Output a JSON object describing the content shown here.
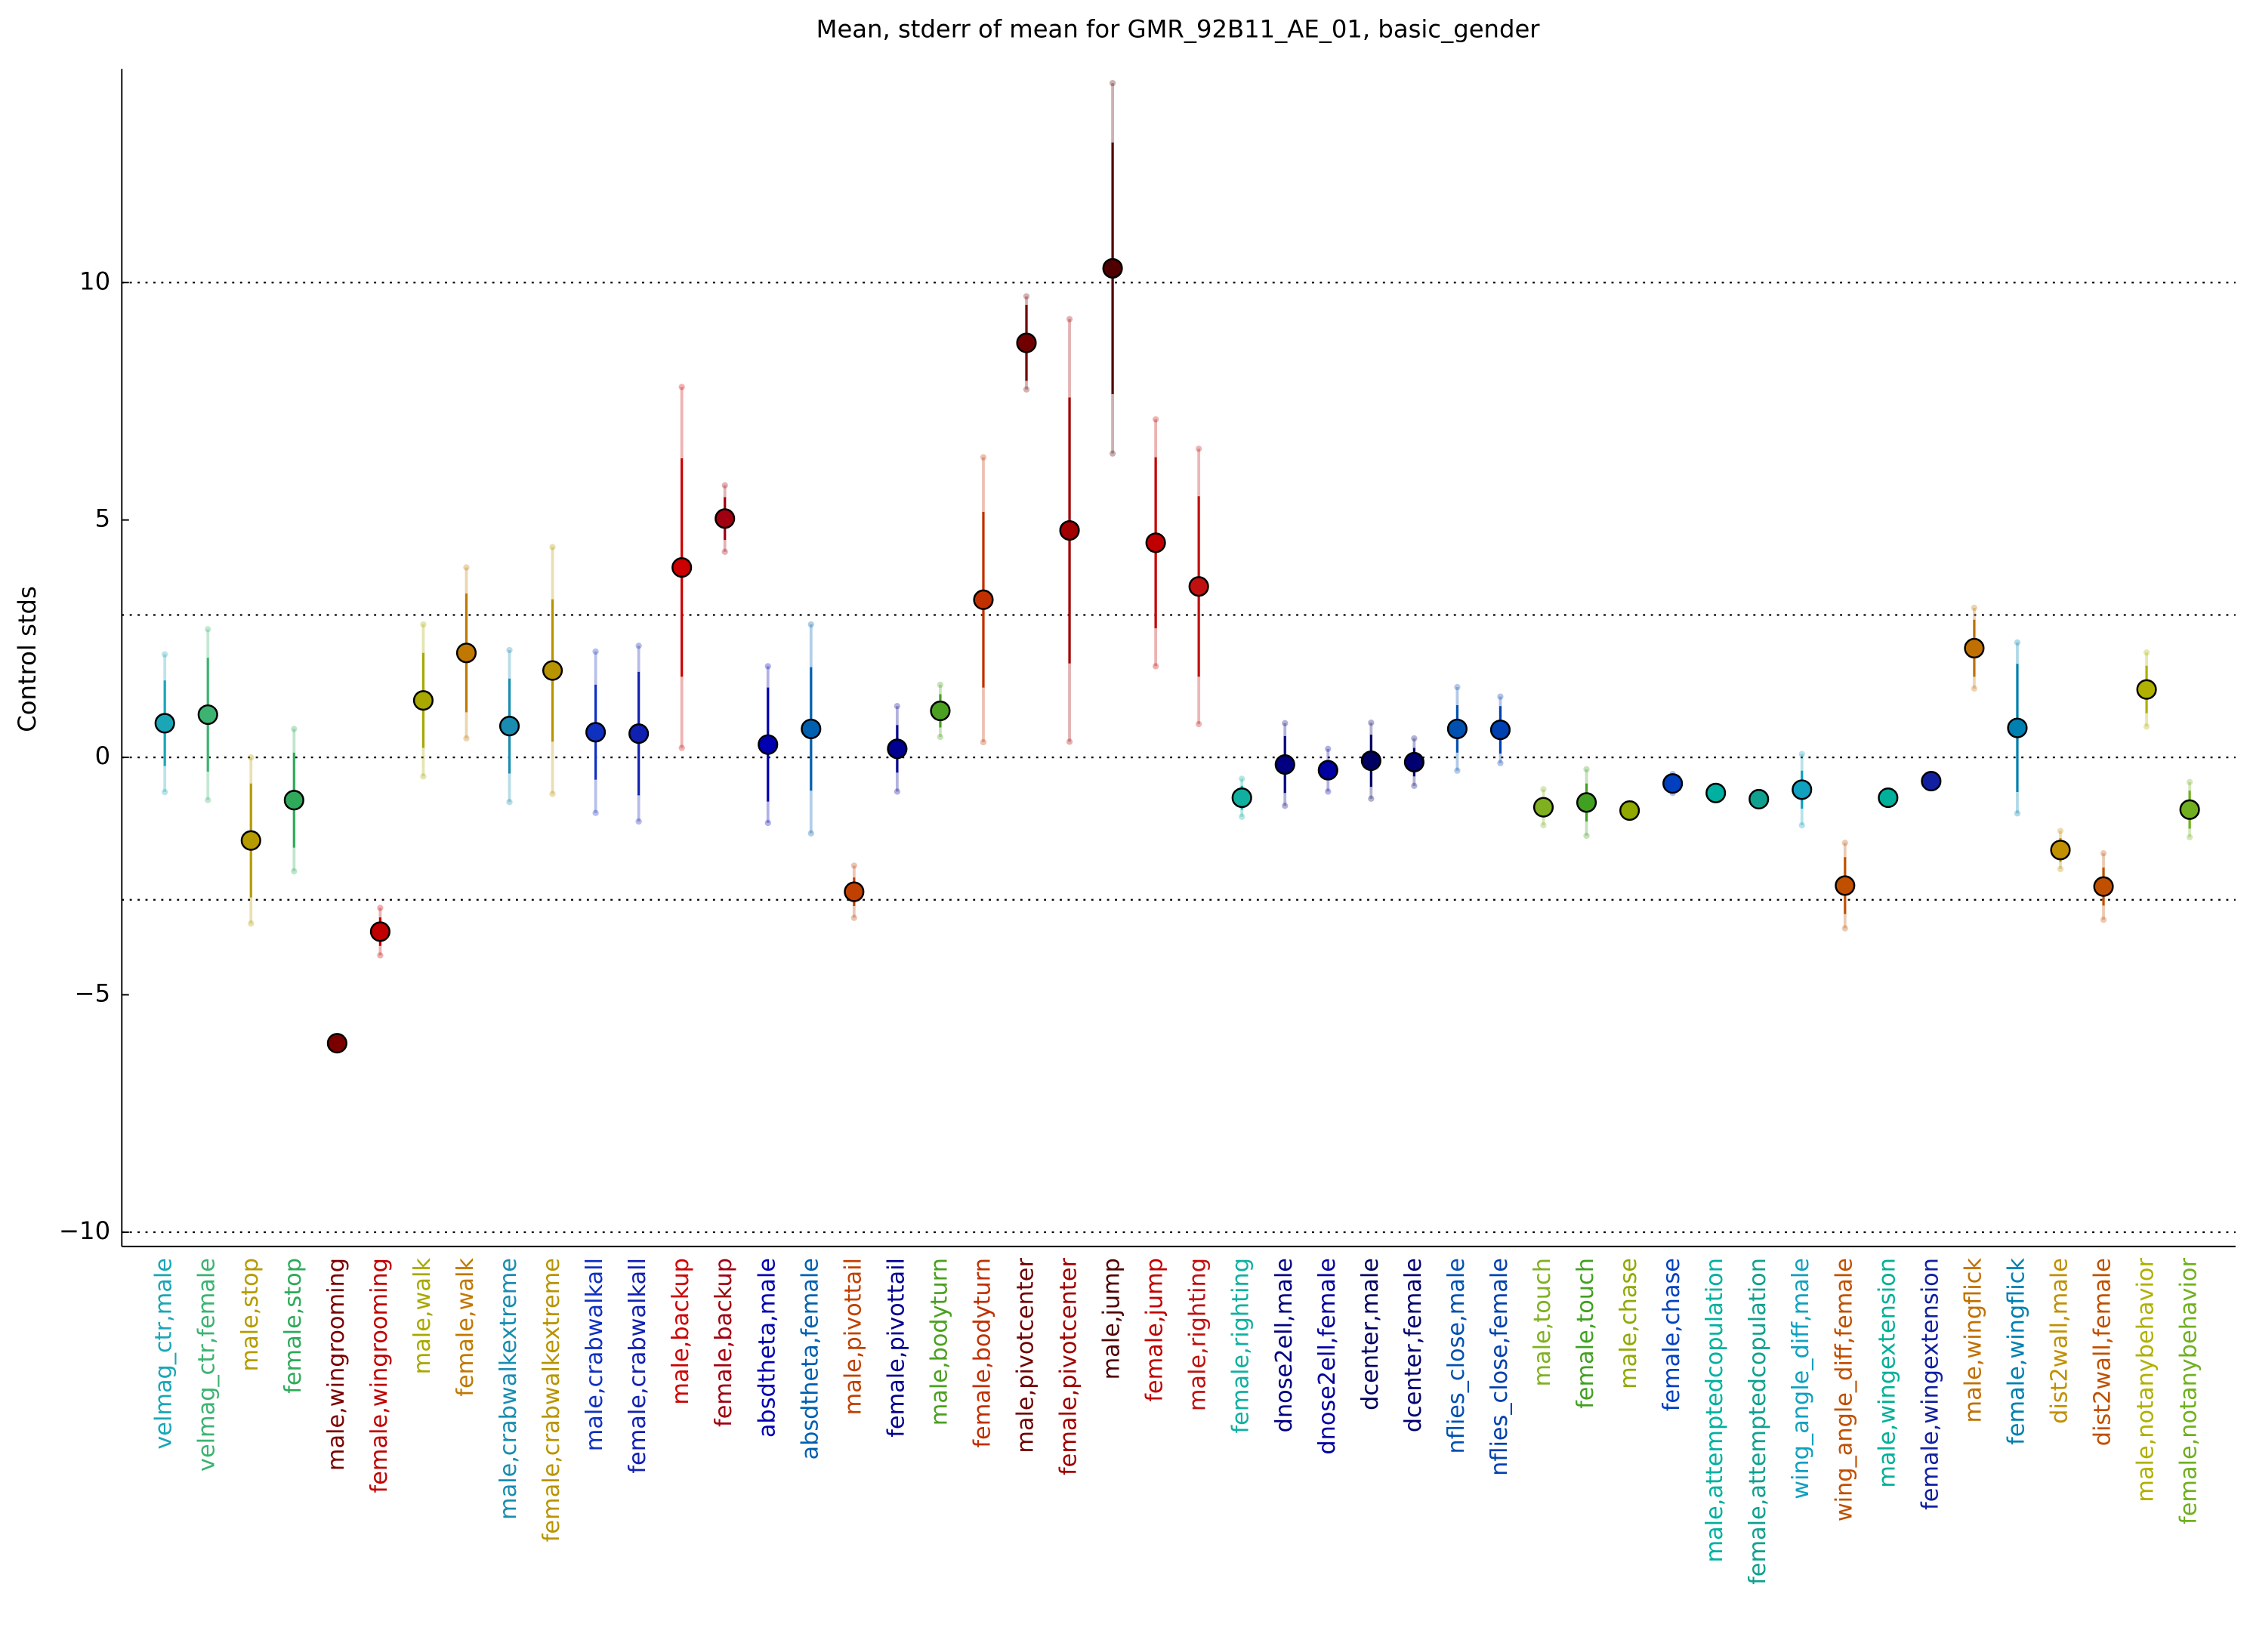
{
  "chart_data": {
    "type": "errorbar",
    "title": "Mean, stderr of mean for GMR_92B11_AE_01, basic_gender",
    "ylabel": "Control stds",
    "ylim": [
      -10.3,
      14.5
    ],
    "yticks": [
      {
        "value": -10,
        "label": "−10"
      },
      {
        "value": -5,
        "label": "−5"
      },
      0,
      5,
      10
    ],
    "hlines": [
      -10,
      -3,
      0,
      3,
      10
    ],
    "categories": [
      "velmag_ctr,male",
      "velmag_ctr,female",
      "male,stop",
      "female,stop",
      "male,wingrooming",
      "female,wingrooming",
      "male,walk",
      "female,walk",
      "male,crabwalkextreme",
      "female,crabwalkextreme",
      "male,crabwalkall",
      "female,crabwalkall",
      "male,backup",
      "female,backup",
      "absdtheta,male",
      "absdtheta,female",
      "male,pivottail",
      "female,pivottail",
      "male,bodyturn",
      "female,bodyturn",
      "male,pivotcenter",
      "female,pivotcenter",
      "male,jump",
      "female,jump",
      "male,righting",
      "female,righting",
      "dnose2ell,male",
      "dnose2ell,female",
      "dcenter,male",
      "dcenter,female",
      "nflies_close,male",
      "nflies_close,female",
      "male,touch",
      "female,touch",
      "male,chase",
      "female,chase",
      "male,attemptedcopulation",
      "female,attemptedcopulation",
      "wing_angle_diff,male",
      "wing_angle_diff,female",
      "male,wingextension",
      "female,wingextension",
      "male,wingflick",
      "female,wingflick",
      "dist2wall,male",
      "dist2wall,female",
      "male,notanybehavior",
      "female,notanybehavior"
    ],
    "values": [
      0.72,
      0.9,
      -1.75,
      -0.9,
      -6.02,
      -3.67,
      1.2,
      2.2,
      0.66,
      1.83,
      0.53,
      0.5,
      4.0,
      5.03,
      0.27,
      0.6,
      -2.83,
      0.18,
      0.98,
      3.32,
      8.73,
      4.78,
      10.3,
      4.52,
      3.6,
      -0.85,
      -0.15,
      -0.27,
      -0.07,
      -0.1,
      0.6,
      0.58,
      -1.05,
      -0.95,
      -1.12,
      -0.55,
      -0.75,
      -0.88,
      -0.68,
      -2.7,
      -0.85,
      -0.5,
      2.3,
      0.62,
      -1.95,
      -2.72,
      1.43,
      -1.1
    ],
    "errors": [
      0.9,
      1.2,
      1.2,
      1.0,
      0.05,
      0.3,
      1.0,
      1.25,
      1.0,
      1.5,
      1.0,
      1.3,
      2.3,
      0.45,
      1.2,
      1.3,
      0.3,
      0.5,
      0.35,
      1.85,
      0.8,
      2.8,
      2.65,
      1.8,
      1.9,
      0.25,
      0.6,
      0.2,
      0.55,
      0.3,
      0.5,
      0.5,
      0.2,
      0.4,
      0.05,
      0.1,
      0.05,
      0.05,
      0.4,
      0.6,
      0.05,
      0.05,
      0.6,
      1.35,
      0.25,
      0.4,
      0.5,
      0.4
    ],
    "spread": [
      1.45,
      1.8,
      1.75,
      1.5,
      0.1,
      0.5,
      1.6,
      1.8,
      1.6,
      2.6,
      1.7,
      1.85,
      3.8,
      0.7,
      1.65,
      2.2,
      0.55,
      0.9,
      0.55,
      3.0,
      0.98,
      4.45,
      3.9,
      2.6,
      2.9,
      0.4,
      0.87,
      0.45,
      0.8,
      0.5,
      0.88,
      0.7,
      0.38,
      0.7,
      0.1,
      0.2,
      0.1,
      0.1,
      0.75,
      0.9,
      0.1,
      0.1,
      0.85,
      1.8,
      0.4,
      0.7,
      0.78,
      0.58
    ],
    "colors": [
      "#1aa6b7",
      "#3cb371",
      "#b59b00",
      "#2eaa5a",
      "#7a0000",
      "#c00000",
      "#a8a800",
      "#c07800",
      "#1a8cb0",
      "#b89400",
      "#1030c0",
      "#1020b0",
      "#cc0000",
      "#a00010",
      "#0000b0",
      "#0060b0",
      "#c04000",
      "#000090",
      "#4aa020",
      "#c03000",
      "#700000",
      "#a00000",
      "#500000",
      "#c00000",
      "#c01010",
      "#10b0a0",
      "#000080",
      "#0000a0",
      "#000060",
      "#000070",
      "#0050b0",
      "#0040b0",
      "#80b020",
      "#40a020",
      "#90a800",
      "#0040c0",
      "#00b0a0",
      "#10a090",
      "#10a0c0",
      "#c05000",
      "#00b09a",
      "#1020a0",
      "#c07000",
      "#0080b0",
      "#c09000",
      "#c05000",
      "#b0b000",
      "#70b020"
    ]
  }
}
